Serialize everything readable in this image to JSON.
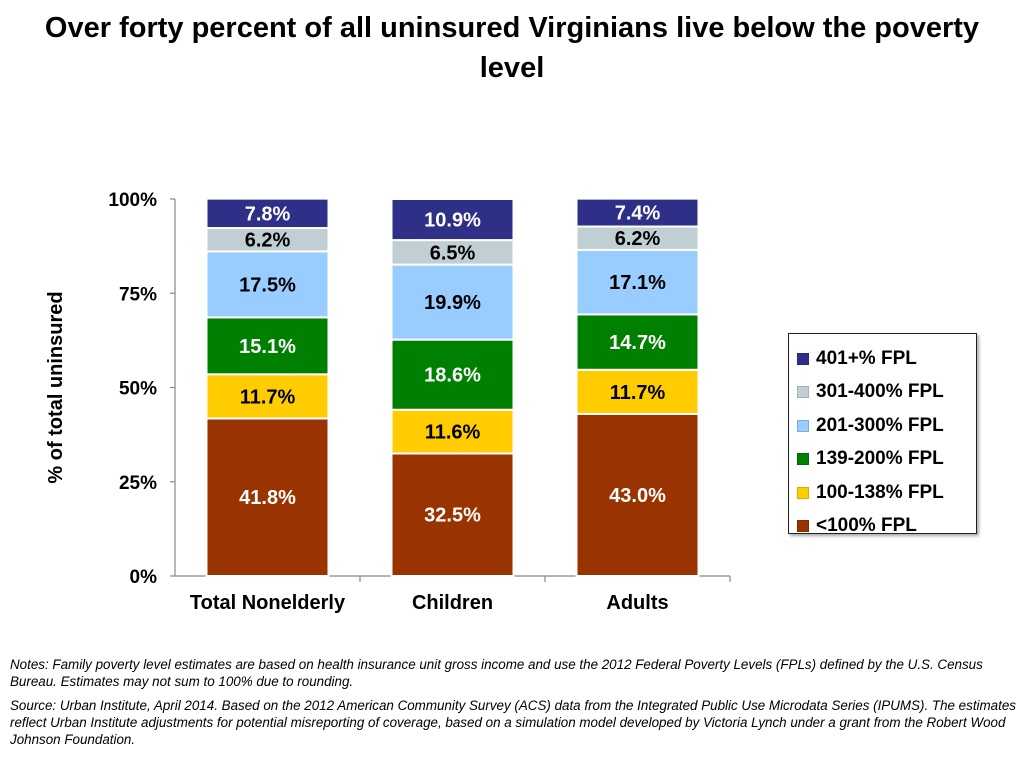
{
  "title": "Over forty percent of all uninsured Virginians live below the poverty level",
  "chart_data": {
    "type": "bar",
    "stacked": true,
    "title": "Over forty percent of all uninsured Virginians live below the poverty level",
    "xlabel": "",
    "ylabel": "% of total uninsured",
    "ylim": [
      0,
      100
    ],
    "yticks": [
      "0%",
      "25%",
      "50%",
      "75%",
      "100%"
    ],
    "categories": [
      "Total Nonelderly",
      "Children",
      "Adults"
    ],
    "legend_position": "right",
    "series": [
      {
        "name": "<100% FPL",
        "color": "#993300",
        "values": [
          41.8,
          32.5,
          43.0
        ],
        "labels": [
          "41.8%",
          "32.5%",
          "43.0%"
        ],
        "label_color": "#ffffff"
      },
      {
        "name": "100-138% FPL",
        "color": "#ffcc00",
        "values": [
          11.7,
          11.6,
          11.7
        ],
        "labels": [
          "11.7%",
          "11.6%",
          "11.7%"
        ],
        "label_color": "#000000"
      },
      {
        "name": "139-200% FPL",
        "color": "#008000",
        "values": [
          15.1,
          18.6,
          14.7
        ],
        "labels": [
          "15.1%",
          "18.6%",
          "14.7%"
        ],
        "label_color": "#ffffff"
      },
      {
        "name": "201-300% FPL",
        "color": "#99ccff",
        "values": [
          17.5,
          19.9,
          17.1
        ],
        "labels": [
          "17.5%",
          "19.9%",
          "17.1%"
        ],
        "label_color": "#000000"
      },
      {
        "name": "301-400% FPL",
        "color": "#c0cfd4",
        "values": [
          6.2,
          6.5,
          6.2
        ],
        "labels": [
          "6.2%",
          "6.5%",
          "6.2%"
        ],
        "label_color": "#000000"
      },
      {
        "name": "401+% FPL",
        "color": "#2e3087",
        "values": [
          7.8,
          10.9,
          7.4
        ],
        "labels": [
          "7.8%",
          "10.9%",
          "7.4%"
        ],
        "label_color": "#ffffff"
      }
    ]
  },
  "legend": {
    "items": [
      {
        "label": "401+% FPL",
        "color": "#2e3087"
      },
      {
        "label": "301-400% FPL",
        "color": "#c0cfd4"
      },
      {
        "label": "201-300% FPL",
        "color": "#99ccff"
      },
      {
        "label": "139-200% FPL",
        "color": "#008000"
      },
      {
        "label": "100-138% FPL",
        "color": "#ffcc00"
      },
      {
        "label": "<100% FPL",
        "color": "#993300"
      }
    ]
  },
  "notes": {
    "note": "Notes: Family poverty level estimates are based on health insurance unit gross income and use the 2012 Federal Poverty Levels (FPLs)  defined by the U.S. Census Bureau. Estimates may not sum to 100% due to rounding.",
    "source": "Source: Urban Institute, April 2014. Based on the 2012 American Community Survey (ACS) data from the Integrated Public Use Microdata Series (IPUMS). The estimates reflect Urban Institute adjustments for potential misreporting of coverage, based on a simulation model developed by Victoria Lynch under a grant from the Robert Wood Johnson Foundation."
  }
}
